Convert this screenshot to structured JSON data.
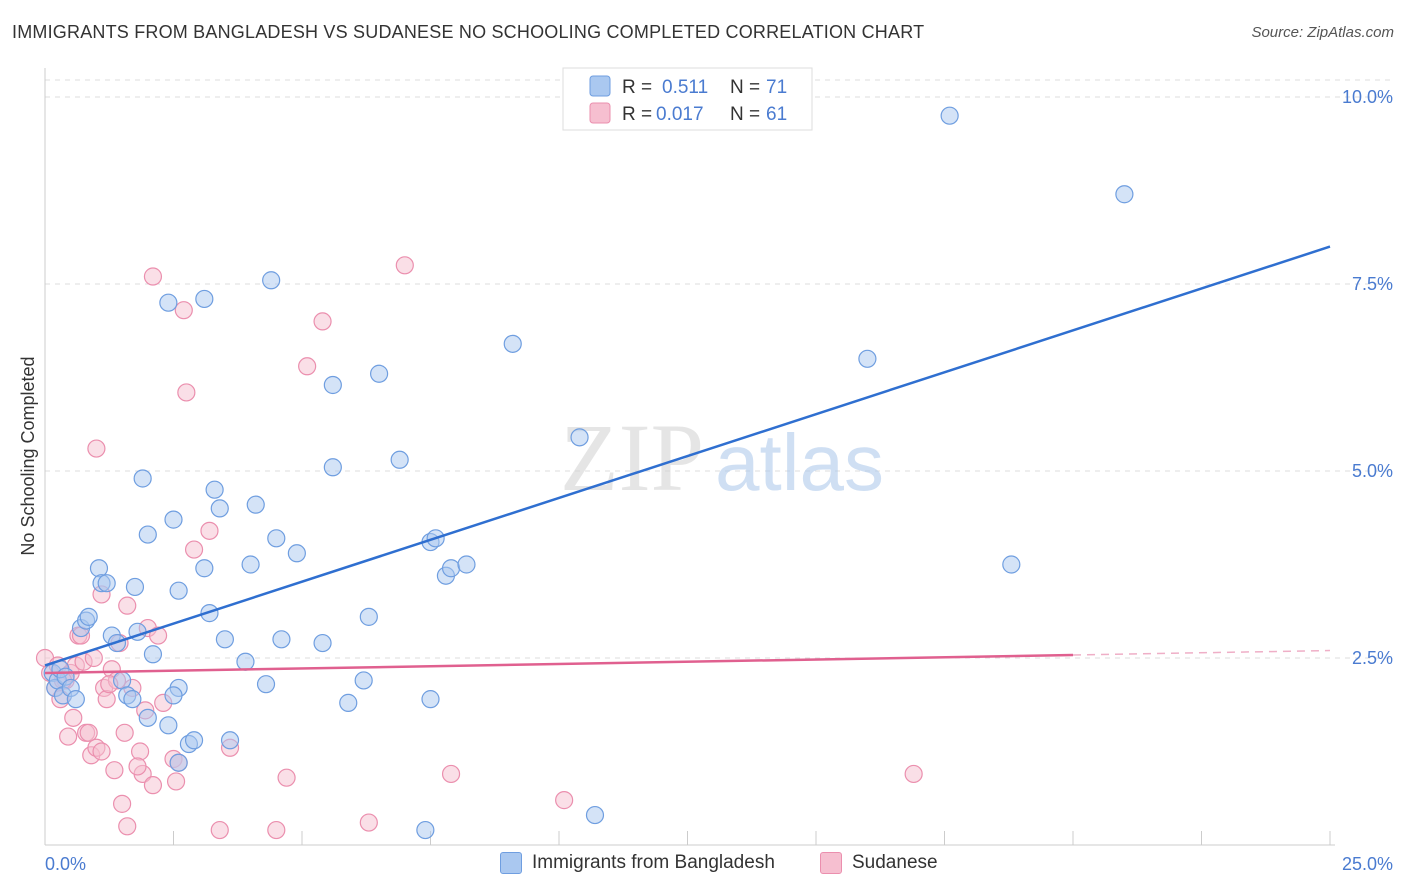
{
  "title": "IMMIGRANTS FROM BANGLADESH VS SUDANESE NO SCHOOLING COMPLETED CORRELATION CHART",
  "source": "Source: ZipAtlas.com",
  "watermark": {
    "zip": "ZIP",
    "atlas": "atlas"
  },
  "colors": {
    "blue_fill": "#aac8f0",
    "blue_stroke": "#6f9ee0",
    "blue_line": "#2f6fd0",
    "pink_fill": "#f6bfd0",
    "pink_stroke": "#eb8fae",
    "pink_line": "#e0608f",
    "accent_text": "#4a7bd0",
    "grid": "#dddddd"
  },
  "legend_top": [
    {
      "r_label": "R =",
      "r_value": "0.511",
      "n_label": "N =",
      "n_value": "71",
      "series": "blue"
    },
    {
      "r_label": "R =",
      "r_value": "0.017",
      "n_label": "N =",
      "n_value": "61",
      "series": "pink"
    }
  ],
  "chart_data": {
    "type": "scatter",
    "ylabel": "No Schooling Completed",
    "xlim": [
      0,
      25
    ],
    "ylim": [
      0,
      10.5
    ],
    "x_tick_labels": [
      {
        "v": 0,
        "label": "0.0%"
      },
      {
        "v": 25,
        "label": "25.0%"
      }
    ],
    "y_tick_labels": [
      {
        "v": 2.5,
        "label": "2.5%"
      },
      {
        "v": 5.0,
        "label": "5.0%"
      },
      {
        "v": 7.5,
        "label": "7.5%"
      },
      {
        "v": 10.0,
        "label": "10.0%"
      }
    ],
    "series": [
      {
        "name": "Immigrants from Bangladesh",
        "color": "blue",
        "trend": {
          "x0": 0,
          "y0": 2.4,
          "x1": 25,
          "y1": 8.0,
          "dashed_from": null
        },
        "points": [
          [
            0.15,
            2.3
          ],
          [
            0.2,
            2.1
          ],
          [
            0.25,
            2.2
          ],
          [
            0.3,
            2.35
          ],
          [
            0.35,
            2.0
          ],
          [
            0.4,
            2.25
          ],
          [
            0.5,
            2.1
          ],
          [
            0.6,
            1.95
          ],
          [
            0.7,
            2.9
          ],
          [
            0.8,
            3.0
          ],
          [
            0.85,
            3.05
          ],
          [
            1.05,
            3.7
          ],
          [
            1.1,
            3.5
          ],
          [
            1.3,
            2.8
          ],
          [
            1.4,
            2.7
          ],
          [
            1.5,
            2.2
          ],
          [
            1.6,
            2.0
          ],
          [
            1.7,
            1.95
          ],
          [
            1.75,
            3.45
          ],
          [
            1.8,
            2.85
          ],
          [
            1.9,
            4.9
          ],
          [
            2.0,
            4.15
          ],
          [
            2.0,
            1.7
          ],
          [
            2.1,
            2.55
          ],
          [
            2.4,
            7.25
          ],
          [
            2.4,
            1.6
          ],
          [
            2.5,
            4.35
          ],
          [
            2.6,
            3.4
          ],
          [
            2.6,
            2.1
          ],
          [
            2.6,
            1.1
          ],
          [
            2.8,
            1.35
          ],
          [
            2.9,
            1.4
          ],
          [
            3.1,
            7.3
          ],
          [
            3.1,
            3.7
          ],
          [
            3.2,
            3.1
          ],
          [
            3.3,
            4.75
          ],
          [
            3.4,
            4.5
          ],
          [
            3.5,
            2.75
          ],
          [
            3.6,
            1.4
          ],
          [
            3.9,
            2.45
          ],
          [
            4.0,
            3.75
          ],
          [
            4.1,
            4.55
          ],
          [
            4.3,
            2.15
          ],
          [
            4.4,
            7.55
          ],
          [
            4.5,
            4.1
          ],
          [
            4.6,
            2.75
          ],
          [
            4.9,
            3.9
          ],
          [
            5.4,
            2.7
          ],
          [
            5.6,
            6.15
          ],
          [
            5.6,
            5.05
          ],
          [
            5.9,
            1.9
          ],
          [
            6.2,
            2.2
          ],
          [
            6.3,
            3.05
          ],
          [
            6.5,
            6.3
          ],
          [
            6.9,
            5.15
          ],
          [
            7.4,
            0.2
          ],
          [
            7.5,
            4.05
          ],
          [
            7.6,
            4.1
          ],
          [
            7.8,
            3.6
          ],
          [
            7.9,
            3.7
          ],
          [
            7.5,
            1.95
          ],
          [
            8.2,
            3.75
          ],
          [
            9.1,
            6.7
          ],
          [
            10.4,
            5.45
          ],
          [
            10.7,
            0.4
          ],
          [
            16.0,
            6.5
          ],
          [
            17.6,
            9.75
          ],
          [
            18.8,
            3.75
          ],
          [
            21.0,
            8.7
          ],
          [
            1.2,
            3.5
          ],
          [
            2.5,
            2.0
          ]
        ]
      },
      {
        "name": "Sudanese",
        "color": "pink",
        "trend": {
          "x0": 0,
          "y0": 2.3,
          "x1": 25,
          "y1": 2.6,
          "dashed_from": 20
        },
        "points": [
          [
            0.0,
            2.5
          ],
          [
            0.1,
            2.3
          ],
          [
            0.2,
            2.1
          ],
          [
            0.25,
            2.4
          ],
          [
            0.3,
            1.95
          ],
          [
            0.4,
            2.2
          ],
          [
            0.45,
            1.45
          ],
          [
            0.5,
            2.3
          ],
          [
            0.55,
            1.7
          ],
          [
            0.6,
            2.4
          ],
          [
            0.65,
            2.8
          ],
          [
            0.7,
            2.8
          ],
          [
            0.75,
            2.45
          ],
          [
            0.8,
            1.5
          ],
          [
            0.85,
            1.5
          ],
          [
            0.9,
            1.2
          ],
          [
            1.0,
            1.3
          ],
          [
            1.0,
            5.3
          ],
          [
            1.1,
            3.35
          ],
          [
            1.1,
            1.25
          ],
          [
            1.15,
            2.1
          ],
          [
            1.2,
            1.95
          ],
          [
            1.3,
            2.35
          ],
          [
            1.35,
            1.0
          ],
          [
            1.4,
            2.2
          ],
          [
            1.45,
            2.7
          ],
          [
            1.5,
            0.55
          ],
          [
            1.55,
            1.5
          ],
          [
            1.6,
            3.2
          ],
          [
            1.6,
            0.25
          ],
          [
            1.7,
            2.1
          ],
          [
            1.85,
            1.25
          ],
          [
            1.9,
            0.95
          ],
          [
            1.95,
            1.8
          ],
          [
            2.0,
            2.9
          ],
          [
            2.1,
            0.8
          ],
          [
            2.1,
            7.6
          ],
          [
            2.2,
            2.8
          ],
          [
            2.3,
            1.9
          ],
          [
            2.5,
            1.15
          ],
          [
            2.55,
            0.85
          ],
          [
            2.7,
            7.15
          ],
          [
            2.75,
            6.05
          ],
          [
            2.9,
            3.95
          ],
          [
            3.2,
            4.2
          ],
          [
            3.4,
            0.2
          ],
          [
            3.6,
            1.3
          ],
          [
            4.5,
            0.2
          ],
          [
            4.7,
            0.9
          ],
          [
            5.1,
            6.4
          ],
          [
            5.4,
            7.0
          ],
          [
            6.3,
            0.3
          ],
          [
            7.0,
            7.75
          ],
          [
            7.9,
            0.95
          ],
          [
            10.1,
            0.6
          ],
          [
            16.9,
            0.95
          ],
          [
            1.25,
            2.15
          ],
          [
            0.35,
            2.2
          ],
          [
            2.6,
            1.1
          ],
          [
            1.8,
            1.05
          ],
          [
            0.95,
            2.5
          ]
        ]
      }
    ]
  },
  "legend_bottom": [
    {
      "label": "Immigrants from Bangladesh",
      "series": "blue"
    },
    {
      "label": "Sudanese",
      "series": "pink"
    }
  ]
}
